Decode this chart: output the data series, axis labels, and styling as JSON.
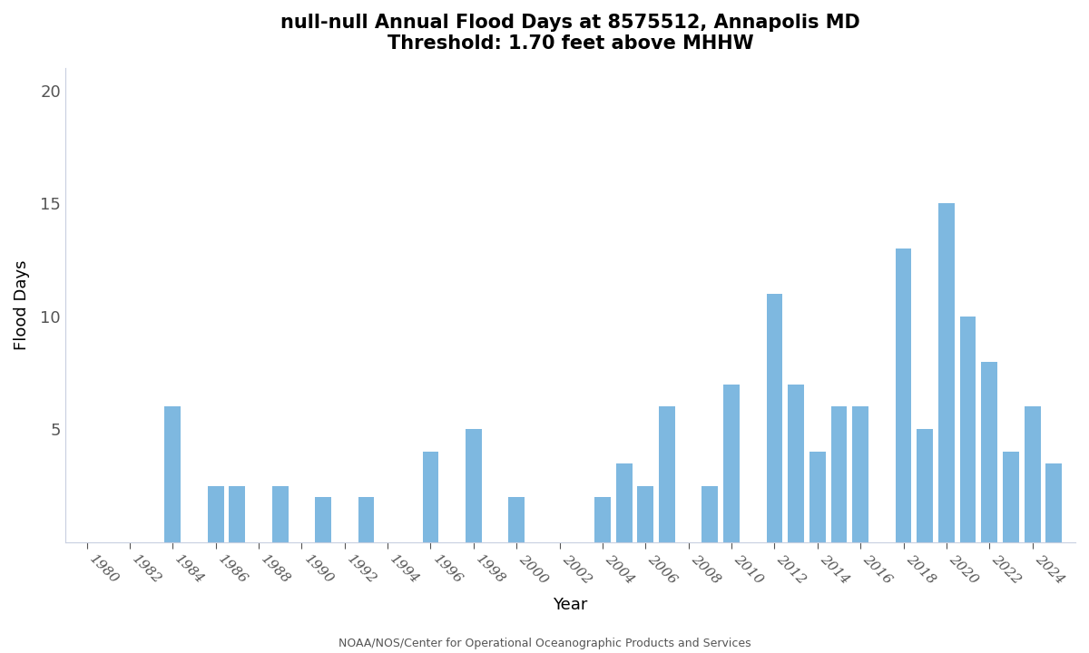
{
  "title_line1": "null-null Annual Flood Days at 8575512, Annapolis MD",
  "title_line2": "Threshold: 1.70 feet above MHHW",
  "xlabel": "Year",
  "ylabel": "Flood Days",
  "caption": "NOAA/NOS/Center for Operational Oceanographic Products and Services",
  "bar_color": "#7EB8E0",
  "background_color": "#ffffff",
  "ylim": [
    0,
    21
  ],
  "yticks": [
    5,
    10,
    15,
    20
  ],
  "years": [
    1980,
    1981,
    1982,
    1983,
    1984,
    1985,
    1986,
    1987,
    1988,
    1989,
    1990,
    1991,
    1992,
    1993,
    1994,
    1995,
    1996,
    1997,
    1998,
    1999,
    2000,
    2001,
    2002,
    2003,
    2004,
    2005,
    2006,
    2007,
    2008,
    2009,
    2010,
    2011,
    2012,
    2013,
    2014,
    2015,
    2016,
    2017,
    2018,
    2019,
    2020,
    2021,
    2022,
    2023,
    2024,
    2025
  ],
  "values": [
    0,
    0,
    0,
    0,
    6,
    0,
    2.5,
    2.5,
    0,
    2.5,
    0,
    2,
    0,
    2,
    0,
    0,
    4,
    0,
    5,
    0,
    2,
    0,
    0,
    0,
    2,
    3.5,
    2.5,
    6,
    0,
    2.5,
    7,
    0,
    11,
    7,
    4,
    6,
    6,
    0,
    13,
    5,
    15,
    10,
    8,
    4,
    6,
    3.5
  ],
  "xtick_years": [
    1980,
    1982,
    1984,
    1986,
    1988,
    1990,
    1992,
    1994,
    1996,
    1998,
    2000,
    2002,
    2004,
    2006,
    2008,
    2010,
    2012,
    2014,
    2016,
    2018,
    2020,
    2022,
    2024
  ],
  "spine_color": "#c8cfe0",
  "tick_color": "#c8cfe0"
}
